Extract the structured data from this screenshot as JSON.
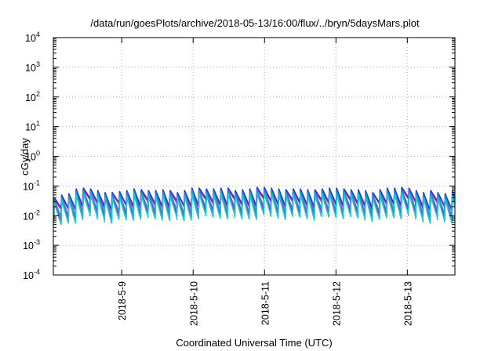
{
  "chart_data": {
    "type": "line",
    "title": "/data/run/goesPlots/archive/2018-05-13/16:00/flux/../bryn/5daysMars.plot",
    "xlabel": "Coordinated Universal Time (UTC)",
    "ylabel": "cGy/day",
    "yscale": "log",
    "ylim": [
      0.0001,
      10000
    ],
    "xlim": [
      "2018-05-08T01:00",
      "2018-05-13T16:00"
    ],
    "grid": true,
    "legend": "none",
    "y_ticks": [
      {
        "base": "10",
        "exp": "-4",
        "value": 0.0001
      },
      {
        "base": "10",
        "exp": "-3",
        "value": 0.001
      },
      {
        "base": "10",
        "exp": "-2",
        "value": 0.01
      },
      {
        "base": "10",
        "exp": "-1",
        "value": 0.1
      },
      {
        "base": "10",
        "exp": "0",
        "value": 1
      },
      {
        "base": "10",
        "exp": "1",
        "value": 10
      },
      {
        "base": "10",
        "exp": "2",
        "value": 100
      },
      {
        "base": "10",
        "exp": "3",
        "value": 1000
      },
      {
        "base": "10",
        "exp": "4",
        "value": 10000
      }
    ],
    "x_ticks": [
      {
        "label": "2018-5-9",
        "value": "2018-05-09T00:00"
      },
      {
        "label": "2018-5-10",
        "value": "2018-05-10T00:00"
      },
      {
        "label": "2018-5-11",
        "value": "2018-05-11T00:00"
      },
      {
        "label": "2018-5-12",
        "value": "2018-05-12T00:00"
      },
      {
        "label": "2018-5-13",
        "value": "2018-05-13T00:00"
      }
    ],
    "series": [
      {
        "color": "#e8199a",
        "values": [
          0.035,
          0.045,
          0.05,
          0.07,
          0.075,
          0.07,
          0.06,
          0.055,
          0.055,
          0.06,
          0.06,
          0.07,
          0.065,
          0.06,
          0.06,
          0.065,
          0.06,
          0.055,
          0.06,
          0.075,
          0.075,
          0.07,
          0.07,
          0.075,
          0.075,
          0.06,
          0.065,
          0.07,
          0.08,
          0.08,
          0.075,
          0.07,
          0.065,
          0.07,
          0.07,
          0.065,
          0.065,
          0.07,
          0.075,
          0.075,
          0.07,
          0.065,
          0.065,
          0.06,
          0.055,
          0.065,
          0.075,
          0.075,
          0.08,
          0.075,
          0.06,
          0.055,
          0.06,
          0.055,
          0.05,
          0.06
        ]
      },
      {
        "color": "#ff00ff",
        "values": [
          0.025,
          0.033,
          0.036,
          0.05,
          0.055,
          0.05,
          0.045,
          0.04,
          0.04,
          0.045,
          0.045,
          0.05,
          0.048,
          0.045,
          0.045,
          0.048,
          0.045,
          0.04,
          0.045,
          0.055,
          0.055,
          0.05,
          0.05,
          0.055,
          0.055,
          0.045,
          0.048,
          0.05,
          0.058,
          0.058,
          0.055,
          0.05,
          0.048,
          0.05,
          0.05,
          0.048,
          0.048,
          0.05,
          0.055,
          0.055,
          0.05,
          0.048,
          0.048,
          0.045,
          0.04,
          0.048,
          0.055,
          0.055,
          0.058,
          0.055,
          0.045,
          0.04,
          0.045,
          0.04,
          0.036,
          0.045
        ]
      },
      {
        "color": "#a020c8",
        "values": [
          0.03,
          0.04,
          0.045,
          0.065,
          0.07,
          0.065,
          0.055,
          0.05,
          0.05,
          0.055,
          0.055,
          0.065,
          0.06,
          0.055,
          0.055,
          0.06,
          0.055,
          0.05,
          0.055,
          0.07,
          0.07,
          0.065,
          0.065,
          0.07,
          0.07,
          0.055,
          0.06,
          0.065,
          0.075,
          0.075,
          0.07,
          0.065,
          0.06,
          0.065,
          0.065,
          0.06,
          0.06,
          0.065,
          0.07,
          0.07,
          0.065,
          0.06,
          0.06,
          0.055,
          0.05,
          0.06,
          0.07,
          0.07,
          0.075,
          0.07,
          0.055,
          0.05,
          0.055,
          0.05,
          0.045,
          0.055
        ]
      },
      {
        "color": "#1e3cd2",
        "values": [
          0.04,
          0.05,
          0.055,
          0.08,
          0.085,
          0.08,
          0.07,
          0.06,
          0.06,
          0.065,
          0.07,
          0.08,
          0.075,
          0.07,
          0.07,
          0.075,
          0.07,
          0.06,
          0.07,
          0.085,
          0.085,
          0.08,
          0.08,
          0.085,
          0.085,
          0.07,
          0.075,
          0.08,
          0.09,
          0.09,
          0.085,
          0.08,
          0.075,
          0.08,
          0.08,
          0.075,
          0.075,
          0.08,
          0.085,
          0.085,
          0.08,
          0.075,
          0.075,
          0.07,
          0.06,
          0.075,
          0.085,
          0.085,
          0.09,
          0.085,
          0.07,
          0.06,
          0.07,
          0.06,
          0.055,
          0.07
        ]
      },
      {
        "color": "#2a8ad8",
        "values": [
          0.033,
          0.042,
          0.046,
          0.066,
          0.07,
          0.066,
          0.058,
          0.05,
          0.05,
          0.054,
          0.058,
          0.066,
          0.062,
          0.058,
          0.058,
          0.062,
          0.058,
          0.05,
          0.058,
          0.07,
          0.07,
          0.066,
          0.066,
          0.07,
          0.07,
          0.058,
          0.062,
          0.066,
          0.074,
          0.074,
          0.07,
          0.066,
          0.062,
          0.066,
          0.066,
          0.062,
          0.062,
          0.066,
          0.07,
          0.07,
          0.066,
          0.062,
          0.062,
          0.058,
          0.05,
          0.062,
          0.07,
          0.07,
          0.074,
          0.07,
          0.058,
          0.05,
          0.058,
          0.05,
          0.046,
          0.058
        ]
      },
      {
        "color": "#20c8c8",
        "values": [
          0.026,
          0.033,
          0.036,
          0.052,
          0.055,
          0.052,
          0.045,
          0.039,
          0.039,
          0.042,
          0.045,
          0.052,
          0.049,
          0.045,
          0.045,
          0.049,
          0.045,
          0.039,
          0.045,
          0.055,
          0.055,
          0.052,
          0.052,
          0.055,
          0.055,
          0.045,
          0.049,
          0.052,
          0.058,
          0.058,
          0.055,
          0.052,
          0.049,
          0.052,
          0.052,
          0.049,
          0.049,
          0.052,
          0.055,
          0.055,
          0.052,
          0.049,
          0.049,
          0.045,
          0.039,
          0.049,
          0.055,
          0.055,
          0.058,
          0.055,
          0.045,
          0.039,
          0.045,
          0.039,
          0.036,
          0.045
        ]
      }
    ]
  }
}
